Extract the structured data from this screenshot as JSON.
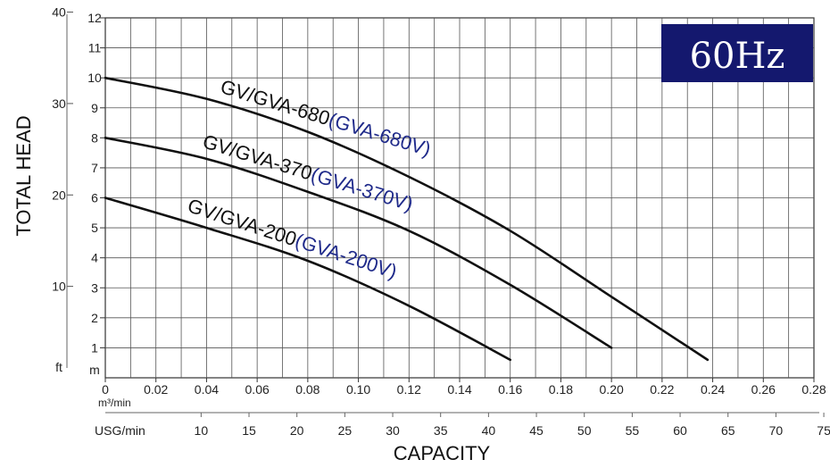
{
  "chart_data": {
    "type": "line",
    "badge": {
      "text": "60Hz",
      "bg_color": "#14186e",
      "text_color": "#ffffff"
    },
    "ylabel": "TOTAL HEAD",
    "xlabel": "CAPACITY",
    "y_m": {
      "unit": "m",
      "ticks": [
        1,
        2,
        3,
        4,
        5,
        6,
        7,
        8,
        9,
        10,
        11,
        12
      ],
      "ylim": [
        0,
        12
      ]
    },
    "y_ft": {
      "unit": "ft",
      "ticks": [
        10,
        20,
        30,
        40
      ]
    },
    "x_m3": {
      "unit": "m³/min",
      "ticks": [
        "0",
        "0.02",
        "0.04",
        "0.06",
        "0.08",
        "0.10",
        "0.12",
        "0.14",
        "0.16",
        "0.18",
        "0.20",
        "0.22",
        "0.24",
        "0.26",
        "0.28"
      ],
      "xlim": [
        0,
        0.28
      ]
    },
    "x_usg": {
      "unit": "USG/min",
      "ticks": [
        10,
        15,
        20,
        25,
        30,
        35,
        40,
        45,
        50,
        55,
        60,
        65,
        70,
        75
      ]
    },
    "grid": true,
    "series": [
      {
        "name": "GV/GVA-680",
        "name_alt": "(GVA-680V)",
        "x": [
          0,
          0.04,
          0.08,
          0.12,
          0.16,
          0.2,
          0.238
        ],
        "y": [
          10,
          9.3,
          8.2,
          6.7,
          4.9,
          2.7,
          0.6
        ]
      },
      {
        "name": "GV/GVA-370",
        "name_alt": "(GVA-370V)",
        "x": [
          0,
          0.04,
          0.08,
          0.12,
          0.16,
          0.2
        ],
        "y": [
          8,
          7.3,
          6.2,
          4.9,
          3.1,
          1
        ]
      },
      {
        "name": "GV/GVA-200",
        "name_alt": "(GVA-200V)",
        "x": [
          0,
          0.04,
          0.08,
          0.12,
          0.16
        ],
        "y": [
          6,
          5,
          3.9,
          2.4,
          0.6
        ]
      }
    ],
    "colors": {
      "curve": "#111111",
      "label_main": "#111111",
      "label_alt": "#1f2a8a"
    }
  }
}
